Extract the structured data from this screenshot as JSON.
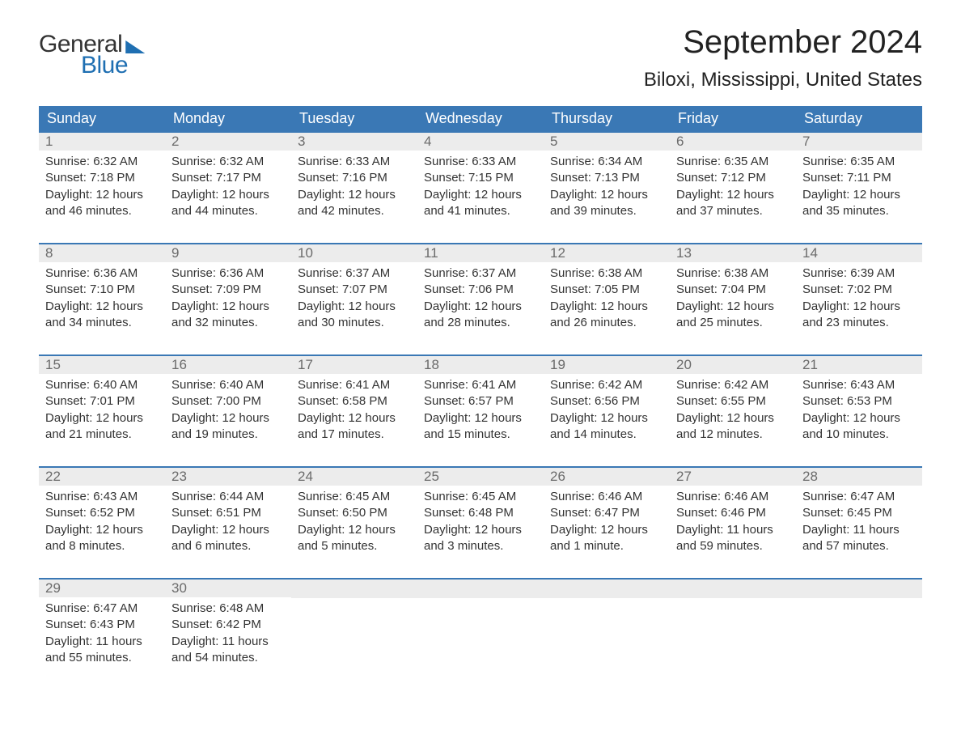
{
  "brand": {
    "word1": "General",
    "word2": "Blue"
  },
  "title": "September 2024",
  "location": "Biloxi, Mississippi, United States",
  "colors": {
    "header_bg": "#3a78b5",
    "header_text": "#ffffff",
    "daynum_bg": "#ececec",
    "daynum_text": "#6b6b6b",
    "body_text": "#333333",
    "accent": "#1f6fb2",
    "page_bg": "#ffffff"
  },
  "typography": {
    "title_fontsize": 40,
    "location_fontsize": 24,
    "header_fontsize": 18,
    "daynum_fontsize": 17,
    "body_fontsize": 15,
    "font_family": "Arial"
  },
  "day_headers": [
    "Sunday",
    "Monday",
    "Tuesday",
    "Wednesday",
    "Thursday",
    "Friday",
    "Saturday"
  ],
  "weeks": [
    [
      {
        "n": "1",
        "sr": "Sunrise: 6:32 AM",
        "ss": "Sunset: 7:18 PM",
        "d1": "Daylight: 12 hours",
        "d2": "and 46 minutes."
      },
      {
        "n": "2",
        "sr": "Sunrise: 6:32 AM",
        "ss": "Sunset: 7:17 PM",
        "d1": "Daylight: 12 hours",
        "d2": "and 44 minutes."
      },
      {
        "n": "3",
        "sr": "Sunrise: 6:33 AM",
        "ss": "Sunset: 7:16 PM",
        "d1": "Daylight: 12 hours",
        "d2": "and 42 minutes."
      },
      {
        "n": "4",
        "sr": "Sunrise: 6:33 AM",
        "ss": "Sunset: 7:15 PM",
        "d1": "Daylight: 12 hours",
        "d2": "and 41 minutes."
      },
      {
        "n": "5",
        "sr": "Sunrise: 6:34 AM",
        "ss": "Sunset: 7:13 PM",
        "d1": "Daylight: 12 hours",
        "d2": "and 39 minutes."
      },
      {
        "n": "6",
        "sr": "Sunrise: 6:35 AM",
        "ss": "Sunset: 7:12 PM",
        "d1": "Daylight: 12 hours",
        "d2": "and 37 minutes."
      },
      {
        "n": "7",
        "sr": "Sunrise: 6:35 AM",
        "ss": "Sunset: 7:11 PM",
        "d1": "Daylight: 12 hours",
        "d2": "and 35 minutes."
      }
    ],
    [
      {
        "n": "8",
        "sr": "Sunrise: 6:36 AM",
        "ss": "Sunset: 7:10 PM",
        "d1": "Daylight: 12 hours",
        "d2": "and 34 minutes."
      },
      {
        "n": "9",
        "sr": "Sunrise: 6:36 AM",
        "ss": "Sunset: 7:09 PM",
        "d1": "Daylight: 12 hours",
        "d2": "and 32 minutes."
      },
      {
        "n": "10",
        "sr": "Sunrise: 6:37 AM",
        "ss": "Sunset: 7:07 PM",
        "d1": "Daylight: 12 hours",
        "d2": "and 30 minutes."
      },
      {
        "n": "11",
        "sr": "Sunrise: 6:37 AM",
        "ss": "Sunset: 7:06 PM",
        "d1": "Daylight: 12 hours",
        "d2": "and 28 minutes."
      },
      {
        "n": "12",
        "sr": "Sunrise: 6:38 AM",
        "ss": "Sunset: 7:05 PM",
        "d1": "Daylight: 12 hours",
        "d2": "and 26 minutes."
      },
      {
        "n": "13",
        "sr": "Sunrise: 6:38 AM",
        "ss": "Sunset: 7:04 PM",
        "d1": "Daylight: 12 hours",
        "d2": "and 25 minutes."
      },
      {
        "n": "14",
        "sr": "Sunrise: 6:39 AM",
        "ss": "Sunset: 7:02 PM",
        "d1": "Daylight: 12 hours",
        "d2": "and 23 minutes."
      }
    ],
    [
      {
        "n": "15",
        "sr": "Sunrise: 6:40 AM",
        "ss": "Sunset: 7:01 PM",
        "d1": "Daylight: 12 hours",
        "d2": "and 21 minutes."
      },
      {
        "n": "16",
        "sr": "Sunrise: 6:40 AM",
        "ss": "Sunset: 7:00 PM",
        "d1": "Daylight: 12 hours",
        "d2": "and 19 minutes."
      },
      {
        "n": "17",
        "sr": "Sunrise: 6:41 AM",
        "ss": "Sunset: 6:58 PM",
        "d1": "Daylight: 12 hours",
        "d2": "and 17 minutes."
      },
      {
        "n": "18",
        "sr": "Sunrise: 6:41 AM",
        "ss": "Sunset: 6:57 PM",
        "d1": "Daylight: 12 hours",
        "d2": "and 15 minutes."
      },
      {
        "n": "19",
        "sr": "Sunrise: 6:42 AM",
        "ss": "Sunset: 6:56 PM",
        "d1": "Daylight: 12 hours",
        "d2": "and 14 minutes."
      },
      {
        "n": "20",
        "sr": "Sunrise: 6:42 AM",
        "ss": "Sunset: 6:55 PM",
        "d1": "Daylight: 12 hours",
        "d2": "and 12 minutes."
      },
      {
        "n": "21",
        "sr": "Sunrise: 6:43 AM",
        "ss": "Sunset: 6:53 PM",
        "d1": "Daylight: 12 hours",
        "d2": "and 10 minutes."
      }
    ],
    [
      {
        "n": "22",
        "sr": "Sunrise: 6:43 AM",
        "ss": "Sunset: 6:52 PM",
        "d1": "Daylight: 12 hours",
        "d2": "and 8 minutes."
      },
      {
        "n": "23",
        "sr": "Sunrise: 6:44 AM",
        "ss": "Sunset: 6:51 PM",
        "d1": "Daylight: 12 hours",
        "d2": "and 6 minutes."
      },
      {
        "n": "24",
        "sr": "Sunrise: 6:45 AM",
        "ss": "Sunset: 6:50 PM",
        "d1": "Daylight: 12 hours",
        "d2": "and 5 minutes."
      },
      {
        "n": "25",
        "sr": "Sunrise: 6:45 AM",
        "ss": "Sunset: 6:48 PM",
        "d1": "Daylight: 12 hours",
        "d2": "and 3 minutes."
      },
      {
        "n": "26",
        "sr": "Sunrise: 6:46 AM",
        "ss": "Sunset: 6:47 PM",
        "d1": "Daylight: 12 hours",
        "d2": "and 1 minute."
      },
      {
        "n": "27",
        "sr": "Sunrise: 6:46 AM",
        "ss": "Sunset: 6:46 PM",
        "d1": "Daylight: 11 hours",
        "d2": "and 59 minutes."
      },
      {
        "n": "28",
        "sr": "Sunrise: 6:47 AM",
        "ss": "Sunset: 6:45 PM",
        "d1": "Daylight: 11 hours",
        "d2": "and 57 minutes."
      }
    ],
    [
      {
        "n": "29",
        "sr": "Sunrise: 6:47 AM",
        "ss": "Sunset: 6:43 PM",
        "d1": "Daylight: 11 hours",
        "d2": "and 55 minutes."
      },
      {
        "n": "30",
        "sr": "Sunrise: 6:48 AM",
        "ss": "Sunset: 6:42 PM",
        "d1": "Daylight: 11 hours",
        "d2": "and 54 minutes."
      },
      {
        "empty": true
      },
      {
        "empty": true
      },
      {
        "empty": true
      },
      {
        "empty": true
      },
      {
        "empty": true
      }
    ]
  ]
}
